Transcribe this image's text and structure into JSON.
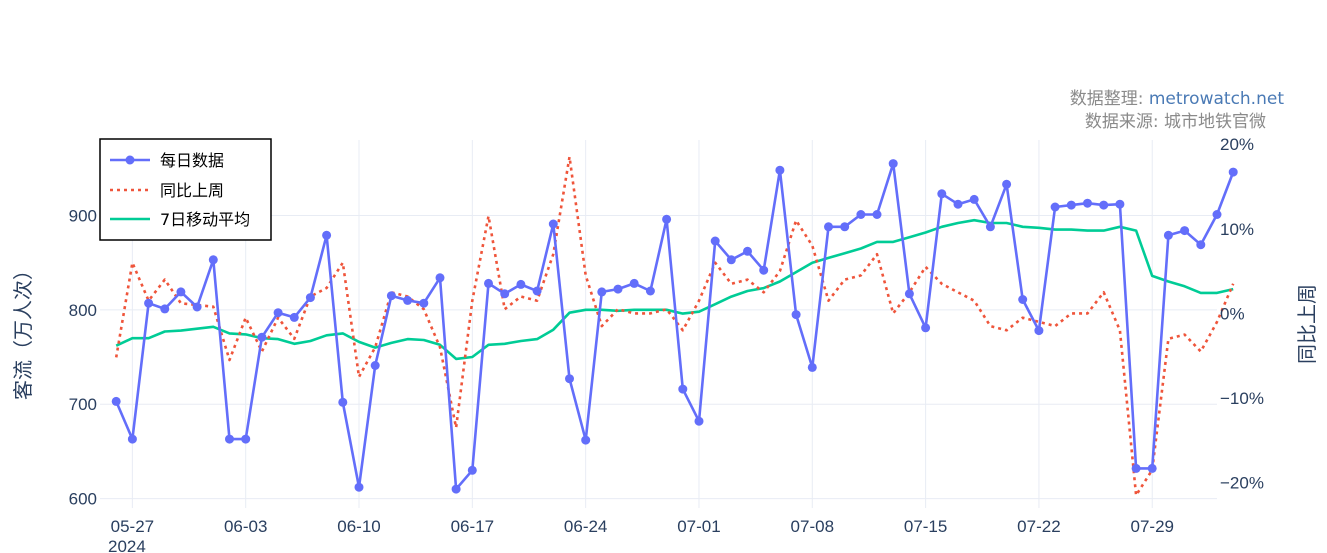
{
  "chart_data": {
    "type": "line",
    "y_left": {
      "title": "客流（万人次）",
      "range": [
        590,
        980
      ],
      "ticks": [
        600,
        700,
        800,
        900
      ]
    },
    "y_right": {
      "title": "同比上周",
      "range": [
        -23,
        20.5
      ],
      "ticks": [
        -20,
        -10,
        0,
        10,
        20
      ],
      "tick_labels": [
        "−20%",
        "−10%",
        "0%",
        "10%",
        "20%"
      ]
    },
    "x_range": [
      "2024-05-25",
      "2024-08-02"
    ],
    "x_ticks": [
      {
        "date": "2024-05-27",
        "label": "05-27"
      },
      {
        "date": "2024-06-03",
        "label": "06-03"
      },
      {
        "date": "2024-06-10",
        "label": "06-10"
      },
      {
        "date": "2024-06-17",
        "label": "06-17"
      },
      {
        "date": "2024-06-24",
        "label": "06-24"
      },
      {
        "date": "2024-07-01",
        "label": "07-01"
      },
      {
        "date": "2024-07-08",
        "label": "07-08"
      },
      {
        "date": "2024-07-15",
        "label": "07-15"
      },
      {
        "date": "2024-07-22",
        "label": "07-22"
      },
      {
        "date": "2024-07-29",
        "label": "07-29"
      }
    ],
    "x_year_label": "2024",
    "start_date": "2024-05-26",
    "source_lines": [
      {
        "label": "数据整理: ",
        "link": "metrowatch.net"
      },
      {
        "label": "数据来源: 城市地铁官微",
        "link": ""
      }
    ],
    "legend": {
      "position": "top-left"
    },
    "series": [
      {
        "name": "每日数据",
        "axis": "left",
        "color": "#636efa",
        "style": "line+markers",
        "values": [
          703,
          663,
          807,
          801,
          819,
          803,
          853,
          663,
          663,
          771,
          797,
          792,
          813,
          879,
          702,
          612,
          741,
          815,
          810,
          807,
          834,
          610,
          630,
          828,
          817,
          827,
          820,
          891,
          727,
          662,
          819,
          822,
          828,
          820,
          896,
          716,
          682,
          873,
          853,
          862,
          842,
          948,
          795,
          739,
          888,
          888,
          901,
          901,
          955,
          817,
          781,
          923,
          912,
          917,
          888,
          933,
          811,
          778,
          909,
          911,
          913,
          911,
          912,
          632,
          632,
          879,
          884,
          869,
          901,
          946
        ]
      },
      {
        "name": "同比上周",
        "axis": "right",
        "color": "#ef553b",
        "style": "dot",
        "values": [
          -5.2,
          6.0,
          1.5,
          4.0,
          1.2,
          1.0,
          0.8,
          -5.5,
          -0.5,
          -4.5,
          -0.5,
          -3.0,
          2.0,
          3.0,
          6.0,
          -7.5,
          -4.0,
          2.5,
          2.0,
          0.5,
          -4.0,
          -13.5,
          1.5,
          11.5,
          0.5,
          2.0,
          1.5,
          7.0,
          18.5,
          4.5,
          -1.5,
          0.5,
          0.0,
          0.0,
          0.5,
          -2.0,
          1.5,
          6.0,
          3.5,
          4.0,
          2.5,
          5.0,
          11.0,
          8.0,
          1.5,
          4.0,
          4.5,
          7.0,
          0.0,
          2.5,
          5.5,
          3.5,
          2.5,
          1.5,
          -1.5,
          -2.0,
          -0.5,
          -1.0,
          -1.5,
          0.0,
          0.0,
          2.5,
          -2.0,
          -21.5,
          -18.5,
          -3.0,
          -2.5,
          -4.5,
          -1.0,
          3.5
        ]
      },
      {
        "name": "7日移动平均",
        "axis": "left",
        "color": "#00cc96",
        "style": "line",
        "values": [
          762,
          770,
          770,
          777,
          778,
          780,
          782,
          775,
          774,
          770,
          769,
          764,
          767,
          773,
          775,
          766,
          760,
          765,
          769,
          768,
          763,
          748,
          750,
          763,
          764,
          767,
          769,
          779,
          797,
          800,
          800,
          799,
          800,
          800,
          800,
          796,
          798,
          806,
          814,
          820,
          823,
          830,
          840,
          850,
          855,
          860,
          865,
          872,
          872,
          877,
          882,
          888,
          892,
          895,
          892,
          892,
          888,
          887,
          885,
          885,
          884,
          884,
          888,
          884,
          836,
          830,
          825,
          818,
          818,
          822
        ]
      }
    ]
  }
}
